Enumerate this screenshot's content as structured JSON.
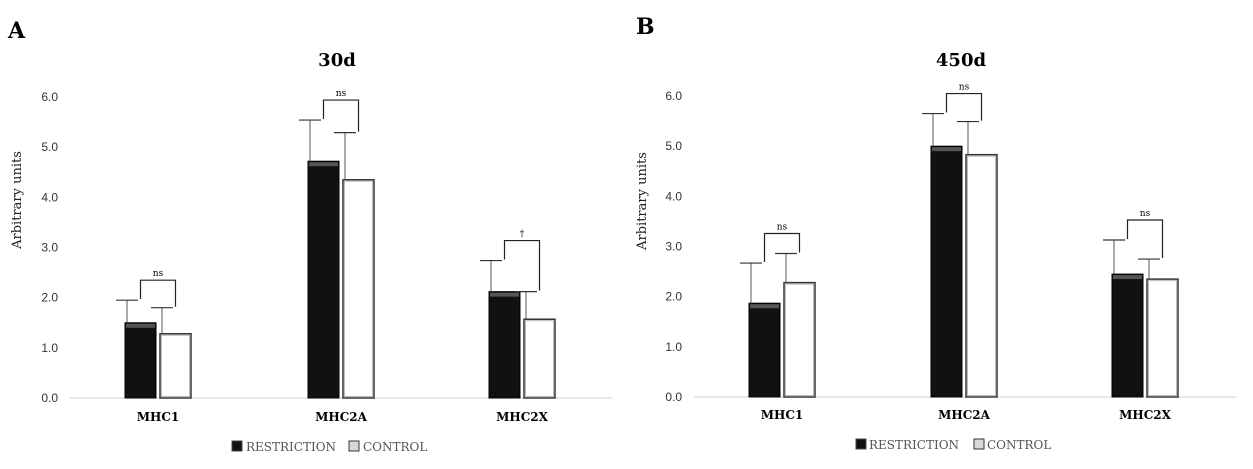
{
  "chart_data": [
    {
      "type": "bar",
      "panel": "A",
      "title": "30d",
      "xlabel": "",
      "ylabel": "Arbitrary units",
      "ylim": [
        0,
        6
      ],
      "yticks": [
        "0.0",
        "1.0",
        "2.0",
        "3.0",
        "4.0",
        "5.0",
        "6.0"
      ],
      "categories": [
        "MHC1",
        "MHC2A",
        "MHC2X"
      ],
      "series": [
        {
          "name": "RESTRICTION",
          "values": [
            1.5,
            4.72,
            2.12
          ],
          "errors": [
            0.45,
            0.82,
            0.62
          ],
          "color": "#111111"
        },
        {
          "name": "CONTROL",
          "values": [
            1.28,
            4.35,
            1.57
          ],
          "errors": [
            0.52,
            0.94,
            0.55
          ],
          "color": "#ffffff"
        }
      ],
      "significance": [
        "ns",
        "ns",
        "†"
      ],
      "legend": [
        "RESTRICTION",
        "CONTROL"
      ]
    },
    {
      "type": "bar",
      "panel": "B",
      "title": "450d",
      "xlabel": "",
      "ylabel": "Arbitrary units",
      "ylim": [
        0,
        6
      ],
      "yticks": [
        "0.0",
        "1.0",
        "2.0",
        "3.0",
        "4.0",
        "5.0",
        "6.0"
      ],
      "categories": [
        "MHC1",
        "MHC2A",
        "MHC2X"
      ],
      "series": [
        {
          "name": "RESTRICTION",
          "values": [
            1.87,
            5.0,
            2.45
          ],
          "errors": [
            0.8,
            0.65,
            0.68
          ],
          "color": "#111111"
        },
        {
          "name": "CONTROL",
          "values": [
            2.28,
            4.83,
            2.35
          ],
          "errors": [
            0.58,
            0.66,
            0.4
          ],
          "color": "#ffffff"
        }
      ],
      "significance": [
        "ns",
        "ns",
        "ns"
      ],
      "legend": [
        "RESTRICTION",
        "CONTROL"
      ]
    }
  ]
}
